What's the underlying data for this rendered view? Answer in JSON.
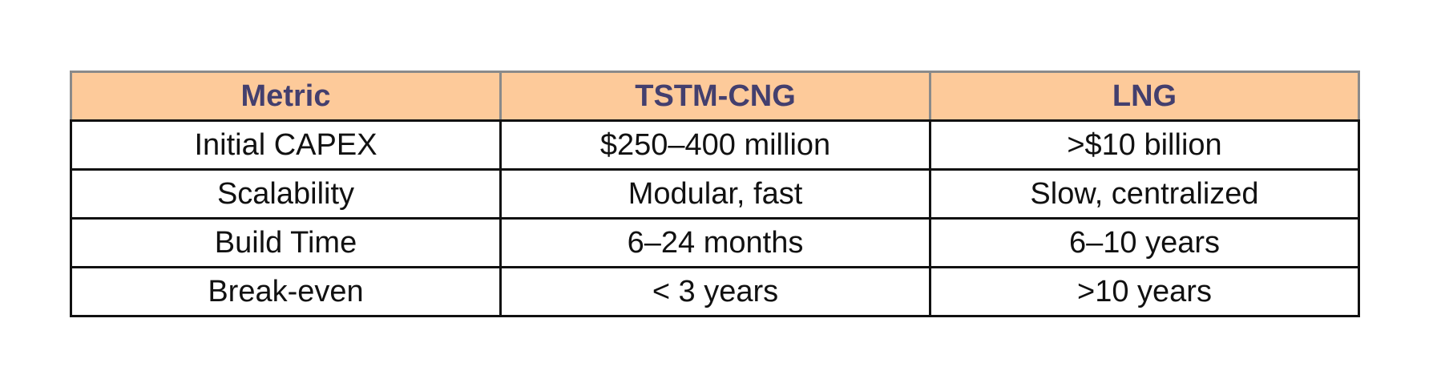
{
  "table": {
    "headers": [
      "Metric",
      "TSTM-CNG",
      "LNG"
    ],
    "rows": [
      [
        "Initial CAPEX",
        "$250–400 million",
        ">$10 billion"
      ],
      [
        "Scalability",
        "Modular, fast",
        "Slow, centralized"
      ],
      [
        "Build Time",
        "6–24 months",
        "6–10 years"
      ],
      [
        "Break-even",
        "< 3 years",
        ">10 years"
      ]
    ],
    "colors": {
      "header_bg": "#fdca9a",
      "header_text": "#433f6e",
      "body_text": "#111111",
      "border": "#111111"
    }
  }
}
